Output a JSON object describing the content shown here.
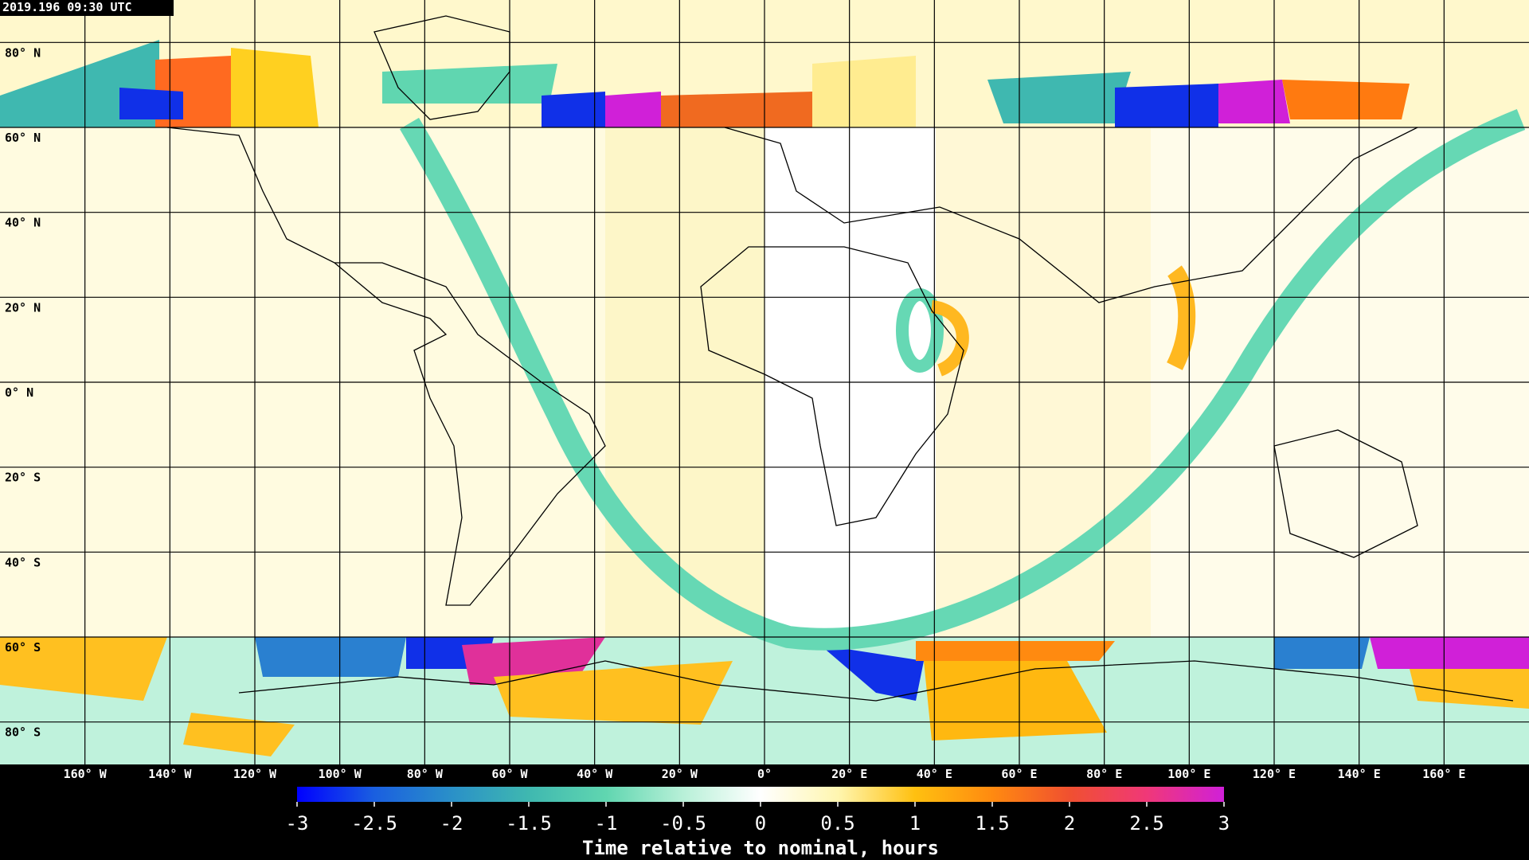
{
  "header": {
    "timestamp": "2019.196 09:30 UTC"
  },
  "map": {
    "lat_labels": [
      "80° N",
      "60° N",
      "40° N",
      "20° N",
      "0° N",
      "20° S",
      "40° S",
      "60° S",
      "80° S"
    ],
    "lon_labels": [
      "160° W",
      "140° W",
      "120° W",
      "100° W",
      "80° W",
      "60° W",
      "40° W",
      "20° W",
      "0°",
      "20° E",
      "40° E",
      "60° E",
      "80° E",
      "100° E",
      "120° E",
      "140° E",
      "160° E"
    ]
  },
  "colorbar": {
    "range": [
      -3,
      3
    ],
    "ticks": [
      -3,
      -2.5,
      -2,
      -1.5,
      -1,
      -0.5,
      0,
      0.5,
      1,
      1.5,
      2,
      2.5,
      3
    ],
    "colors": [
      "#0000ff",
      "#1a5fe0",
      "#2a90c8",
      "#3fb8b0",
      "#60d6b0",
      "#b8f0d8",
      "#ffffff",
      "#fff6b0",
      "#ffc010",
      "#ff8a10",
      "#f05030",
      "#f03878",
      "#d020d8"
    ],
    "label": "Time relative to nominal, hours"
  }
}
